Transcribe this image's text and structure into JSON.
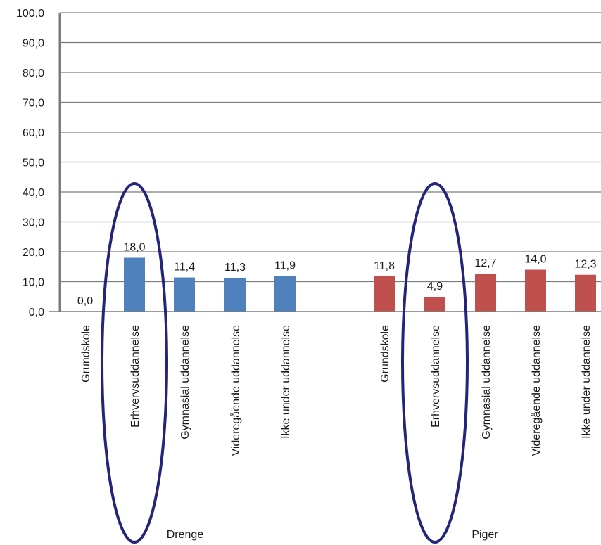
{
  "chart_data": {
    "type": "bar",
    "ylim": [
      0,
      100
    ],
    "yticks": [
      "0,0",
      "10,0",
      "20,0",
      "30,0",
      "40,0",
      "50,0",
      "60,0",
      "70,0",
      "80,0",
      "90,0",
      "100,0"
    ],
    "grid": true,
    "groups": [
      {
        "name": "Drenge",
        "color": "#4f81bd",
        "categories": [
          "Grundskole",
          "Erhvervsuddannelse",
          "Gymnasial uddannelse",
          "Videregående uddannelse",
          "Ikke under uddannelse"
        ],
        "values": [
          0.0,
          18.0,
          11.4,
          11.3,
          11.9
        ],
        "labels": [
          "0,0",
          "18,0",
          "11,4",
          "11,3",
          "11,9"
        ]
      },
      {
        "name": "Piger",
        "color": "#c0504d",
        "categories": [
          "Grundskole",
          "Erhvervsuddannelse",
          "Gymnasial uddannelse",
          "Videregående uddannelse",
          "Ikke under uddannelse"
        ],
        "values": [
          11.8,
          4.9,
          12.7,
          14.0,
          12.3
        ],
        "labels": [
          "11,8",
          "4,9",
          "12,7",
          "14,0",
          "12,3"
        ]
      }
    ],
    "highlight": {
      "category": "Erhvervsuddannelse",
      "shape": "ellipse",
      "color": "#24247a"
    }
  }
}
